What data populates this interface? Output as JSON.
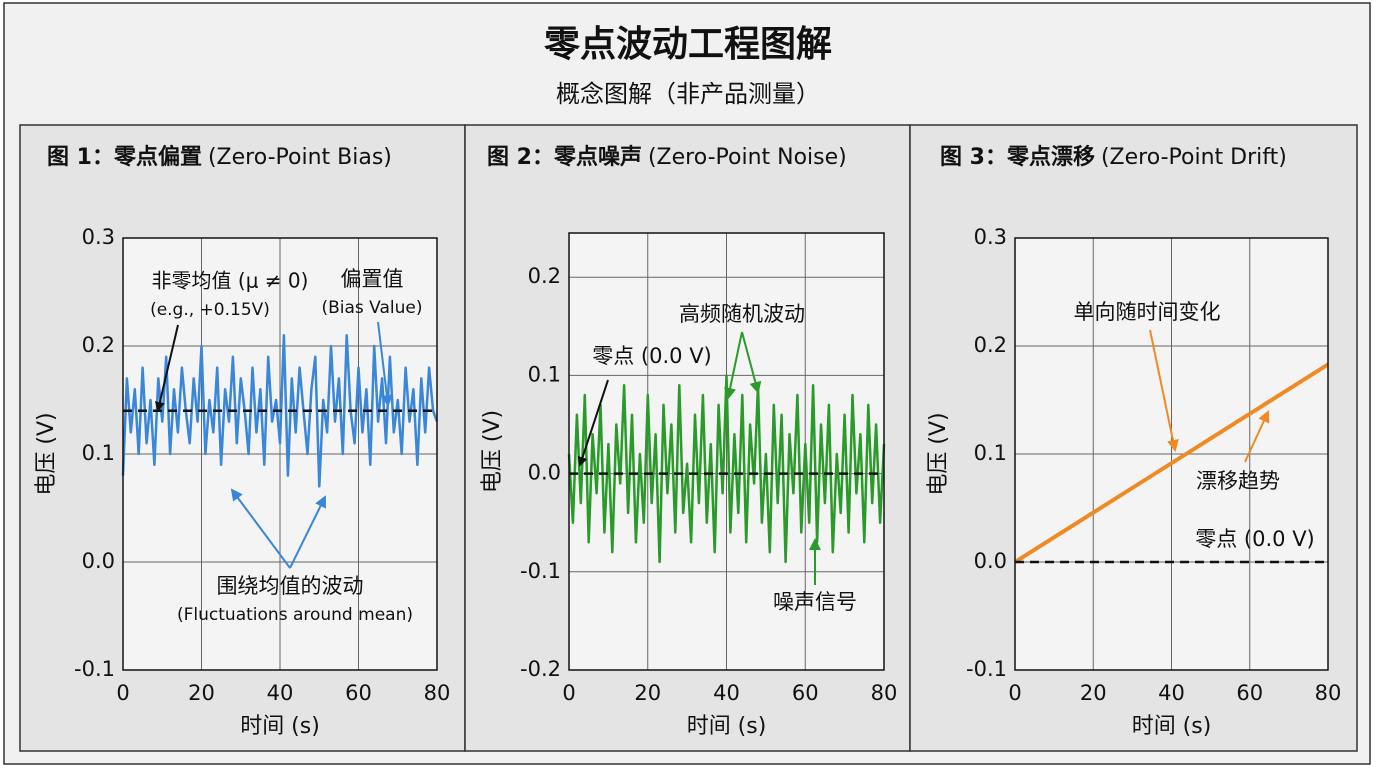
{
  "title": "零点波动工程图解",
  "subtitle": "概念图解（非产品测量）",
  "chart_data": [
    {
      "type": "line",
      "title": "图 1：零点偏置",
      "title_note": "(Zero-Point Bias)",
      "x_label": "时间 (s)",
      "y_label": "电压 (V)",
      "color": "#3a86d8",
      "xlim": [
        0,
        80
      ],
      "xticks": [
        0,
        20,
        40,
        60,
        80
      ],
      "ylim": [
        -0.1,
        0.3
      ],
      "yticks": [
        -0.1,
        {
          "value": 0,
          "label": "0.0"
        },
        0.1,
        0.2,
        0.3
      ],
      "grid": true,
      "ref_line": 0.14,
      "x": [
        0,
        1,
        2,
        3,
        4,
        5,
        6,
        7,
        8,
        9,
        10,
        11,
        12,
        13,
        14,
        15,
        16,
        17,
        18,
        19,
        20,
        21,
        22,
        23,
        24,
        25,
        26,
        27,
        28,
        29,
        30,
        31,
        32,
        33,
        34,
        35,
        36,
        37,
        38,
        39,
        40,
        41,
        42,
        43,
        44,
        45,
        46,
        47,
        48,
        49,
        50,
        51,
        52,
        53,
        54,
        55,
        56,
        57,
        58,
        59,
        60,
        61,
        62,
        63,
        64,
        65,
        66,
        67,
        68,
        69,
        70,
        71,
        72,
        73,
        74,
        75,
        76,
        77,
        78,
        79,
        80
      ],
      "values": [
        0.08,
        0.17,
        0.12,
        0.16,
        0.1,
        0.18,
        0.11,
        0.15,
        0.09,
        0.17,
        0.13,
        0.19,
        0.1,
        0.16,
        0.12,
        0.18,
        0.14,
        0.11,
        0.17,
        0.13,
        0.2,
        0.1,
        0.15,
        0.12,
        0.18,
        0.09,
        0.16,
        0.13,
        0.19,
        0.11,
        0.17,
        0.14,
        0.1,
        0.18,
        0.12,
        0.16,
        0.09,
        0.19,
        0.13,
        0.15,
        0.11,
        0.21,
        0.08,
        0.17,
        0.12,
        0.18,
        0.14,
        0.1,
        0.16,
        0.19,
        0.07,
        0.15,
        0.12,
        0.2,
        0.13,
        0.17,
        0.1,
        0.21,
        0.14,
        0.11,
        0.18,
        0.12,
        0.16,
        0.09,
        0.2,
        0.13,
        0.17,
        0.11,
        0.19,
        0.12,
        0.15,
        0.1,
        0.18,
        0.13,
        0.16,
        0.09,
        0.17,
        0.12,
        0.18,
        0.14,
        0.13
      ],
      "annotations": [
        "非零均值 (μ ≠ 0)",
        "(e.g., +0.15V)",
        "偏置值",
        "(Bias Value)",
        "围绕均值的波动",
        "(Fluctuations around mean)"
      ]
    },
    {
      "type": "line",
      "title": "图 2：零点噪声",
      "title_note": "(Zero-Point Noise)",
      "x_label": "时间 (s)",
      "y_label": "电压 (V)",
      "color": "#2a9a2a",
      "xlim": [
        0,
        80
      ],
      "xticks": [
        0,
        20,
        40,
        60,
        80
      ],
      "ylim": [
        -0.2,
        0.245
      ],
      "yticks": [
        -0.2,
        -0.1,
        {
          "value": 0,
          "label": "0.0"
        },
        0.1,
        0.2
      ],
      "grid": true,
      "ref_line": 0,
      "x": [
        0,
        1,
        2,
        3,
        4,
        5,
        6,
        7,
        8,
        9,
        10,
        11,
        12,
        13,
        14,
        15,
        16,
        17,
        18,
        19,
        20,
        21,
        22,
        23,
        24,
        25,
        26,
        27,
        28,
        29,
        30,
        31,
        32,
        33,
        34,
        35,
        36,
        37,
        38,
        39,
        40,
        41,
        42,
        43,
        44,
        45,
        46,
        47,
        48,
        49,
        50,
        51,
        52,
        53,
        54,
        55,
        56,
        57,
        58,
        59,
        60,
        61,
        62,
        63,
        64,
        65,
        66,
        67,
        68,
        69,
        70,
        71,
        72,
        73,
        74,
        75,
        76,
        77,
        78,
        79,
        80
      ],
      "values": [
        0.02,
        -0.05,
        0.06,
        -0.03,
        0.08,
        -0.07,
        0.04,
        -0.02,
        0.07,
        -0.06,
        0.03,
        -0.08,
        0.05,
        -0.01,
        0.09,
        -0.04,
        0.06,
        -0.07,
        0.02,
        -0.05,
        0.08,
        -0.03,
        0.04,
        -0.09,
        0.07,
        -0.02,
        0.05,
        -0.06,
        0.09,
        -0.04,
        0.01,
        -0.07,
        0.06,
        -0.03,
        0.08,
        -0.05,
        0.03,
        -0.08,
        0.07,
        -0.02,
        0.1,
        -0.06,
        0.04,
        -0.04,
        0.08,
        -0.07,
        0.05,
        -0.01,
        0.09,
        -0.05,
        0.02,
        -0.08,
        0.07,
        -0.03,
        0.06,
        -0.09,
        0.04,
        -0.02,
        0.08,
        -0.06,
        0.03,
        -0.05,
        0.09,
        -0.07,
        0.05,
        -0.03,
        0.07,
        -0.08,
        0.02,
        -0.04,
        0.06,
        -0.06,
        0.08,
        -0.02,
        0.04,
        -0.07,
        0.07,
        -0.03,
        0.05,
        -0.05,
        0.03
      ],
      "annotations": [
        "零点 (0.0 V)",
        "高频随机波动",
        "噪声信号"
      ]
    },
    {
      "type": "line",
      "title": "图 3：零点漂移",
      "title_note": "(Zero-Point Drift)",
      "x_label": "时间 (s)",
      "y_label": "电压 (V)",
      "color": "#f08a24",
      "xlim": [
        0,
        80
      ],
      "xticks": [
        0,
        20,
        40,
        60,
        80
      ],
      "ylim": [
        -0.1,
        0.3
      ],
      "yticks": [
        -0.1,
        {
          "value": 0,
          "label": "0.0"
        },
        0.1,
        0.2,
        0.3
      ],
      "grid": true,
      "ref_line": 0,
      "x": [
        0,
        80
      ],
      "values": [
        0,
        0.183
      ],
      "annotations": [
        "单向随时间变化",
        "漂移趋势",
        "零点 (0.0 V)"
      ]
    }
  ]
}
